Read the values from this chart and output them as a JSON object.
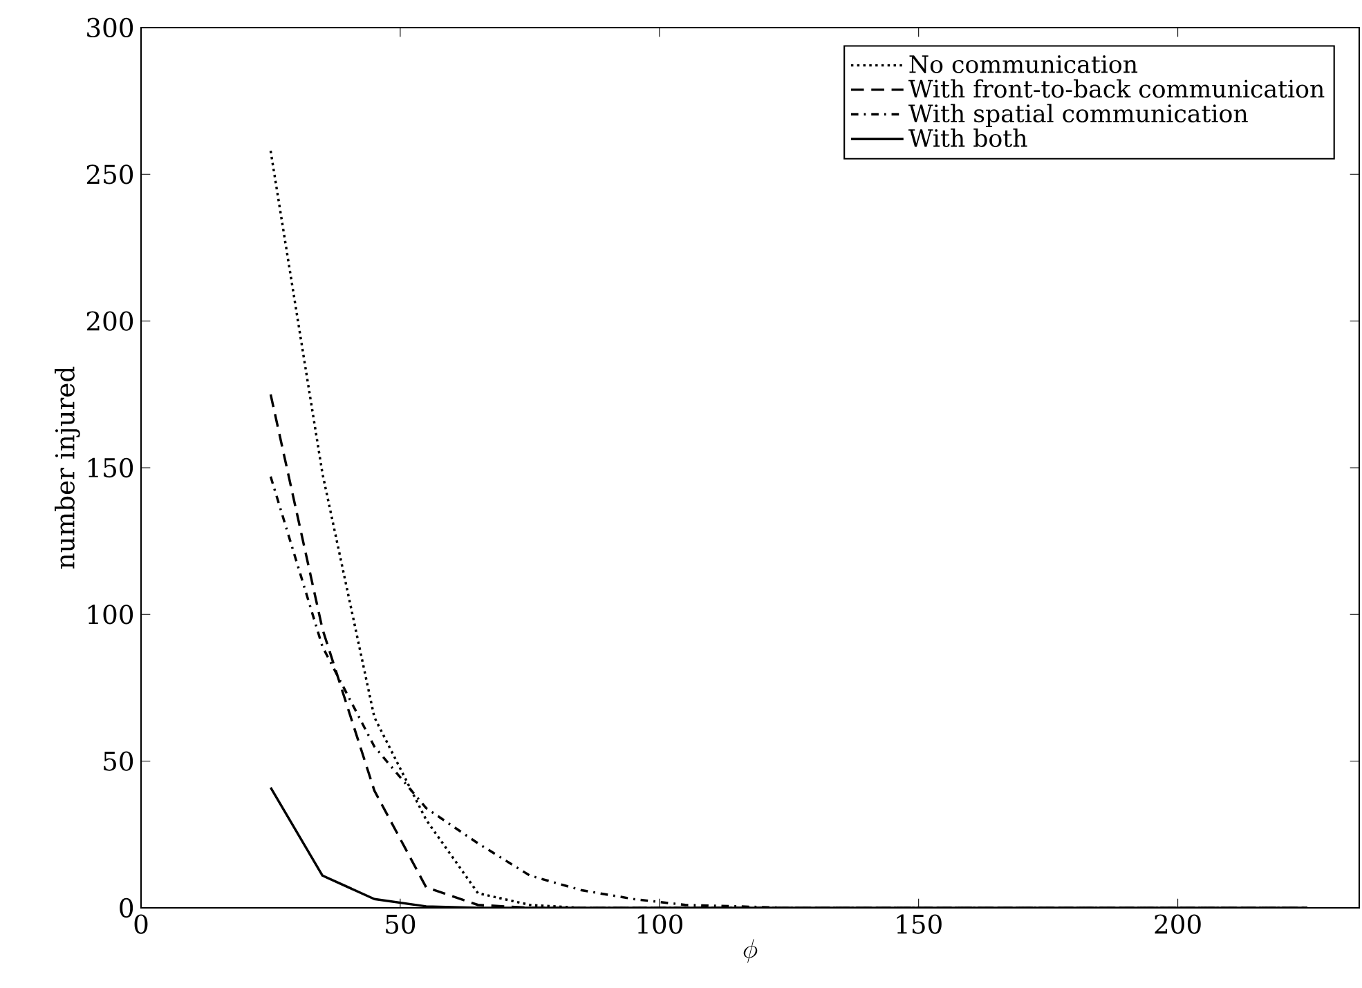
{
  "chart_data": {
    "type": "line",
    "xlabel": "\\phi",
    "ylabel": "number injured",
    "x": [
      25,
      35,
      45,
      55,
      65,
      75,
      85,
      95,
      105,
      115,
      125,
      135,
      145,
      155,
      165,
      175,
      185,
      195,
      205,
      215,
      225
    ],
    "series": [
      {
        "name": "No communication",
        "color": "#000000",
        "line_style": "dotted",
        "values": [
          258,
          148,
          65,
          30,
          5,
          1,
          0,
          0,
          0,
          0,
          0,
          0,
          0,
          0,
          0,
          0,
          0,
          0,
          0,
          0,
          0
        ]
      },
      {
        "name": "With front-to-back communication",
        "color": "#000000",
        "line_style": "dashed",
        "values": [
          175,
          95,
          40,
          7,
          1,
          0,
          0,
          0,
          0,
          0,
          0,
          0,
          0,
          0,
          0,
          0,
          0,
          0,
          0,
          0,
          0
        ]
      },
      {
        "name": "With spatial communication",
        "color": "#000000",
        "line_style": "dashdot",
        "values": [
          147,
          89,
          55,
          34,
          22,
          11,
          6,
          3,
          1,
          0.5,
          0,
          0,
          0,
          0,
          0,
          0,
          0,
          0,
          0,
          0,
          0
        ]
      },
      {
        "name": "With both",
        "color": "#000000",
        "line_style": "solid",
        "values": [
          41,
          11,
          3,
          0.5,
          0,
          0,
          0,
          0,
          0,
          0,
          0,
          0,
          0,
          0,
          0,
          0,
          0,
          0,
          0,
          0,
          0
        ]
      }
    ],
    "xlim": [
      0,
      235
    ],
    "ylim": [
      0,
      300
    ],
    "xticks": [
      0,
      50,
      100,
      150,
      200
    ],
    "yticks": [
      0,
      50,
      100,
      150,
      200,
      250,
      300
    ],
    "legend": "top right",
    "marker": "none",
    "grid": false
  }
}
